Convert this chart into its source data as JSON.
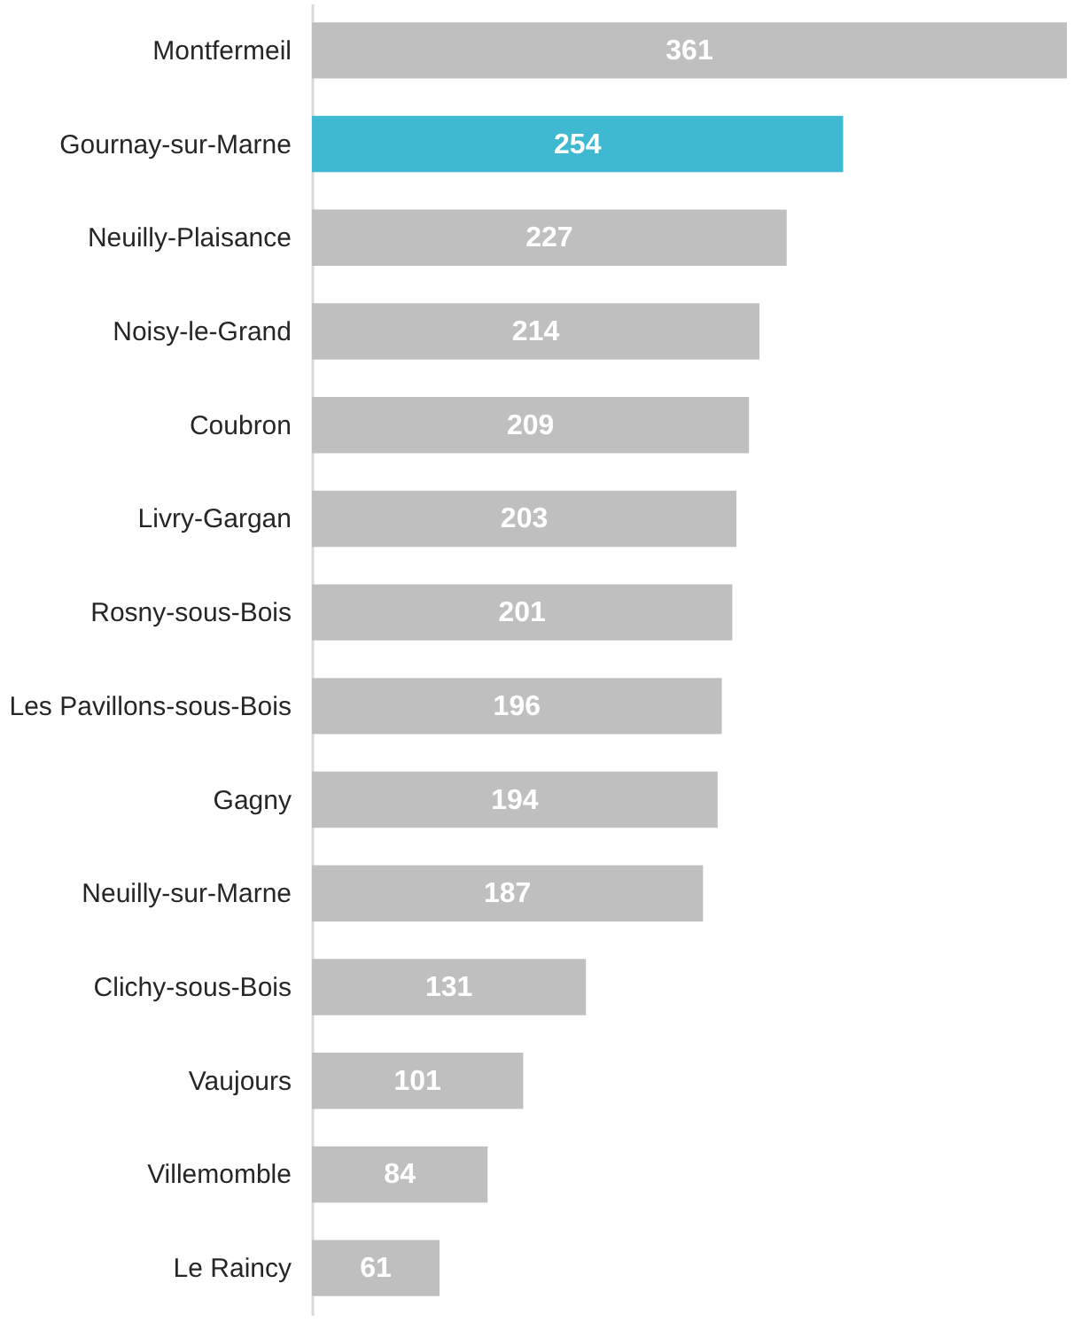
{
  "chart_data": {
    "type": "bar",
    "orientation": "horizontal",
    "data_labels": true,
    "categories": [
      "Montfermeil",
      "Gournay-sur-Marne",
      "Neuilly-Plaisance",
      "Noisy-le-Grand",
      "Coubron",
      "Livry-Gargan",
      "Rosny-sous-Bois",
      "Les Pavillons-sous-Bois",
      "Gagny",
      "Neuilly-sur-Marne",
      "Clichy-sous-Bois",
      "Vaujours",
      "Villemomble",
      "Le Raincy"
    ],
    "values": [
      361,
      254,
      227,
      214,
      209,
      203,
      201,
      196,
      194,
      187,
      131,
      101,
      84,
      61
    ],
    "colors": [
      "#bfbfbf",
      "#3fb8d2",
      "#bfbfbf",
      "#bfbfbf",
      "#bfbfbf",
      "#bfbfbf",
      "#bfbfbf",
      "#bfbfbf",
      "#bfbfbf",
      "#bfbfbf",
      "#bfbfbf",
      "#bfbfbf",
      "#bfbfbf",
      "#bfbfbf"
    ],
    "xlabel": null
  }
}
